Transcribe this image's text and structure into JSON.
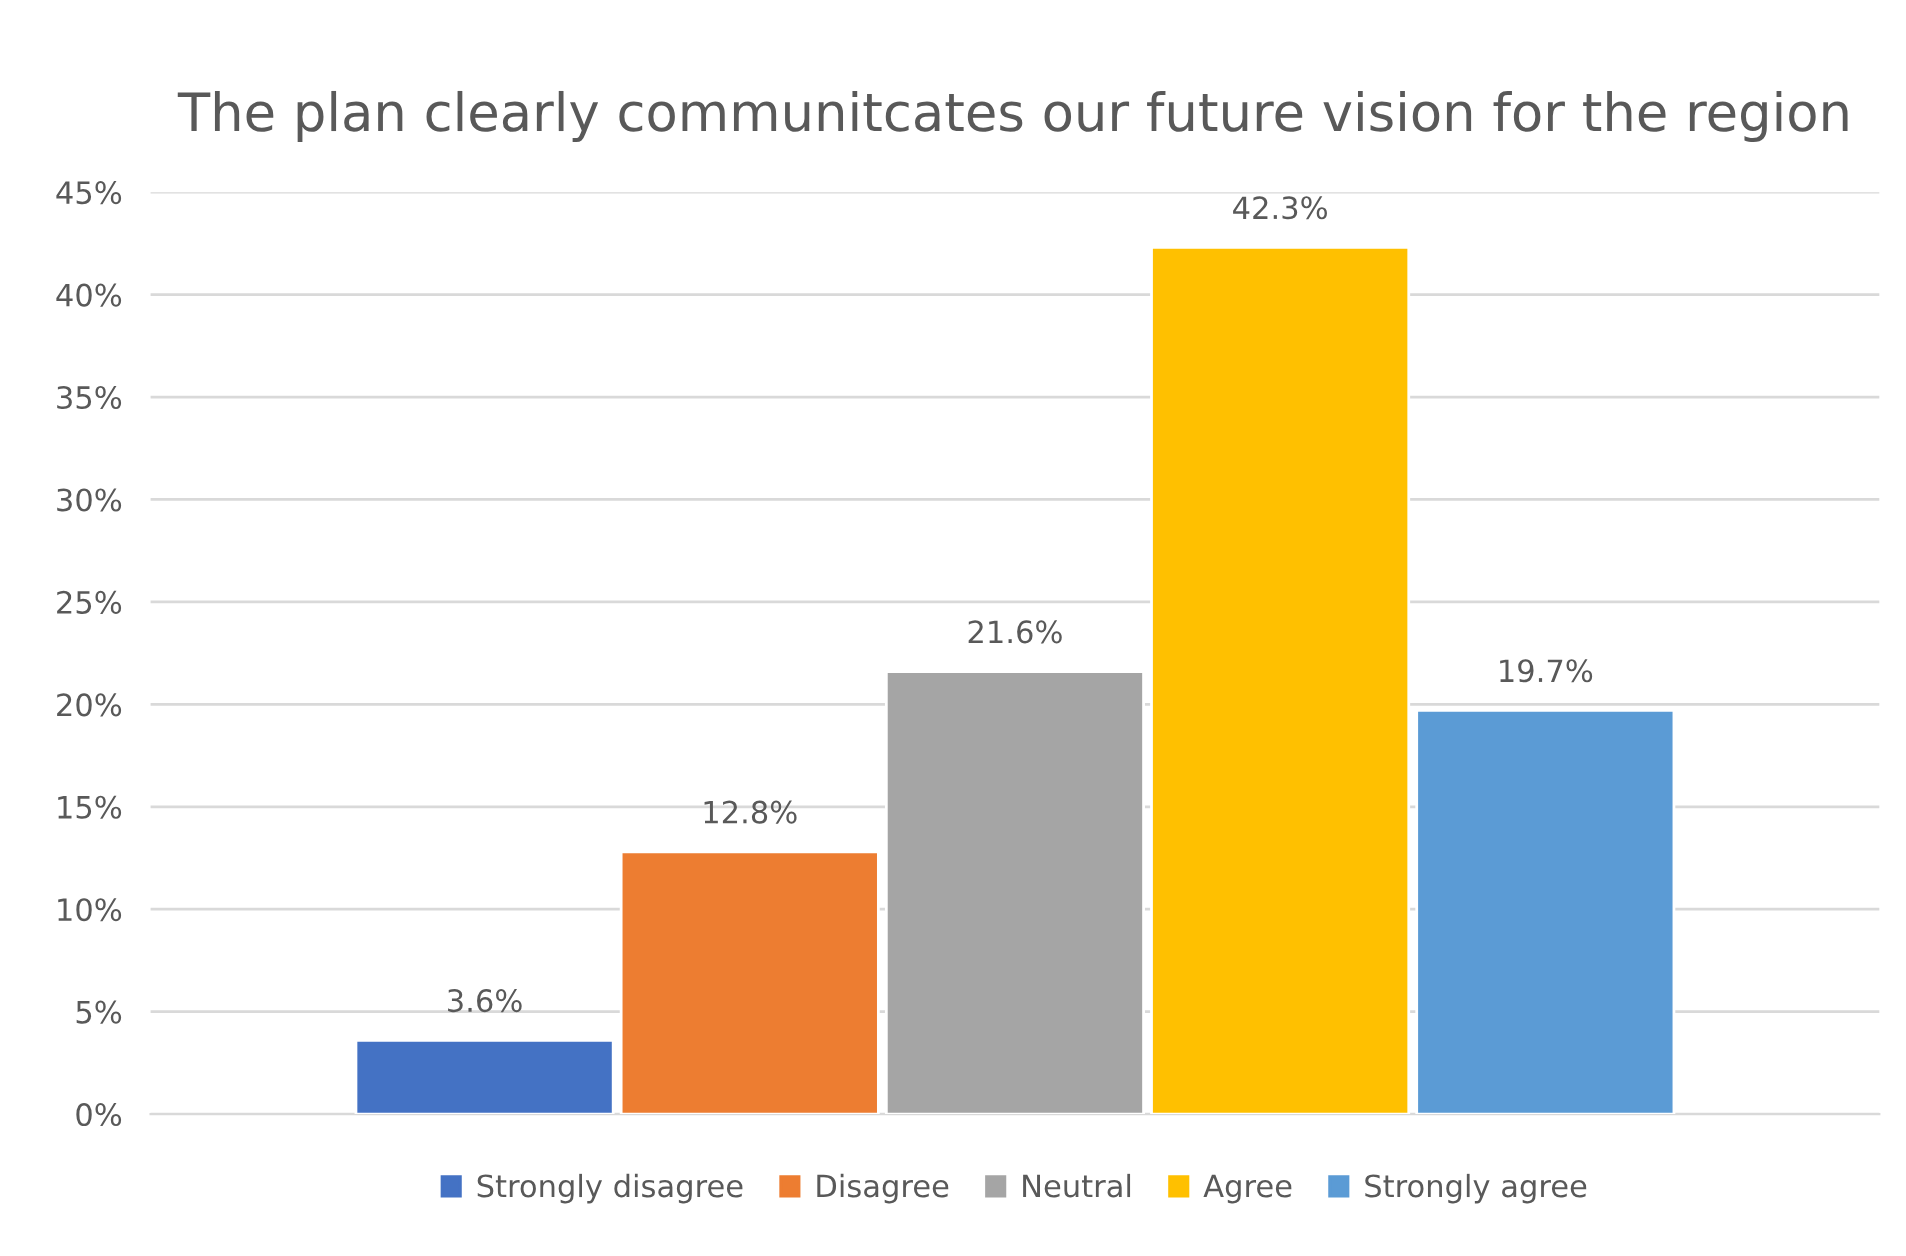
{
  "chart_data": {
    "type": "bar",
    "title": "The plan clearly communitcates our future vision for the region",
    "categories": [
      null
    ],
    "series": [
      {
        "name": "Strongly disagree",
        "color": "#4472c4",
        "values": [
          3.6
        ],
        "value_labels": [
          "3.6%"
        ]
      },
      {
        "name": "Disagree",
        "color": "#ed7d31",
        "values": [
          12.8
        ],
        "value_labels": [
          "12.8%"
        ]
      },
      {
        "name": "Neutral",
        "color": "#a5a5a5",
        "values": [
          21.6
        ],
        "value_labels": [
          "21.6%"
        ]
      },
      {
        "name": "Agree",
        "color": "#ffc000",
        "values": [
          42.3
        ],
        "value_labels": [
          "42.3%"
        ]
      },
      {
        "name": "Strongly agree",
        "color": "#5b9bd5",
        "values": [
          19.7
        ],
        "value_labels": [
          "19.7%"
        ]
      }
    ],
    "ylim": [
      0,
      45
    ],
    "yticks": [
      {
        "value": 0,
        "label": "0%"
      },
      {
        "value": 5,
        "label": "5%"
      },
      {
        "value": 10,
        "label": "10%"
      },
      {
        "value": 15,
        "label": "15%"
      },
      {
        "value": 20,
        "label": "20%"
      },
      {
        "value": 25,
        "label": "25%"
      },
      {
        "value": 30,
        "label": "30%"
      },
      {
        "value": 35,
        "label": "35%"
      },
      {
        "value": 40,
        "label": "40%"
      },
      {
        "value": 45,
        "label": "45%"
      }
    ],
    "grid": "y",
    "legend": "bottom"
  }
}
